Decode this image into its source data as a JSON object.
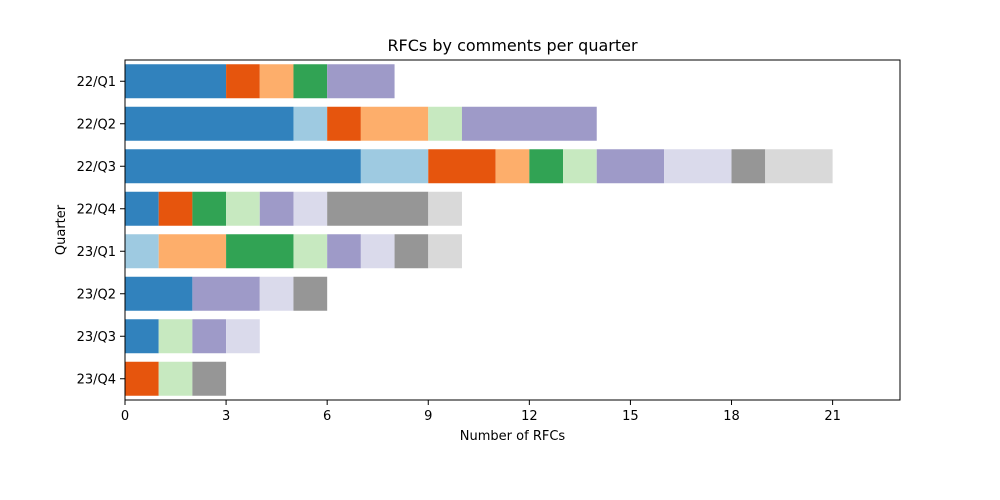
{
  "chart_data": {
    "type": "bar",
    "orientation": "horizontal",
    "stacked": true,
    "title": "RFCs by comments per quarter",
    "xlabel": "Number of RFCs",
    "ylabel": "Quarter",
    "xlim": [
      0,
      23
    ],
    "xticks": [
      0,
      3,
      6,
      9,
      12,
      15,
      18,
      21
    ],
    "grid": false,
    "legend": "none",
    "categories": [
      "22/Q1",
      "22/Q2",
      "22/Q3",
      "22/Q4",
      "23/Q1",
      "23/Q2",
      "23/Q3",
      "23/Q4"
    ],
    "series": [
      {
        "color": "#3182bd",
        "values": [
          3,
          5,
          7,
          1,
          0,
          2,
          1,
          0
        ]
      },
      {
        "color": "#9ecae1",
        "values": [
          0,
          1,
          2,
          0,
          1,
          0,
          0,
          0
        ]
      },
      {
        "color": "#e6550d",
        "values": [
          1,
          1,
          2,
          1,
          0,
          0,
          0,
          1
        ]
      },
      {
        "color": "#fdae6b",
        "values": [
          1,
          2,
          1,
          0,
          2,
          0,
          0,
          0
        ]
      },
      {
        "color": "#31a354",
        "values": [
          1,
          0,
          1,
          1,
          2,
          0,
          0,
          0
        ]
      },
      {
        "color": "#c7e9c0",
        "values": [
          0,
          1,
          1,
          1,
          1,
          0,
          1,
          1
        ]
      },
      {
        "color": "#9e9ac8",
        "values": [
          2,
          4,
          2,
          1,
          1,
          2,
          1,
          0
        ]
      },
      {
        "color": "#dadaeb",
        "values": [
          0,
          0,
          2,
          1,
          1,
          1,
          1,
          0
        ]
      },
      {
        "color": "#969696",
        "values": [
          0,
          0,
          1,
          3,
          1,
          1,
          0,
          1
        ]
      },
      {
        "color": "#d9d9d9",
        "values": [
          0,
          0,
          2,
          1,
          1,
          0,
          0,
          0
        ]
      }
    ]
  }
}
